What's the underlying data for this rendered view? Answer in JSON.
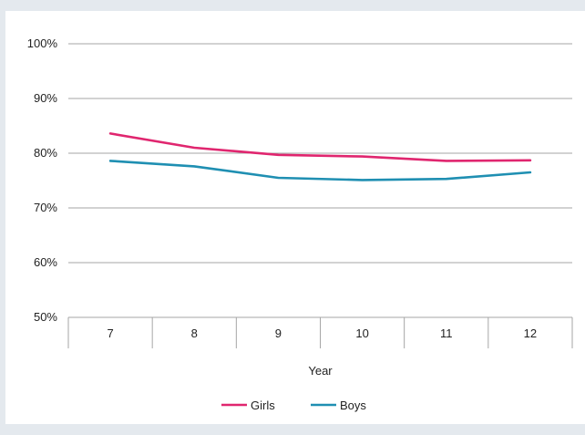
{
  "chart_data": {
    "type": "line",
    "title": "",
    "xlabel": "Year",
    "ylabel": "",
    "categories": [
      "7",
      "8",
      "9",
      "10",
      "11",
      "12"
    ],
    "y_ticks": [
      "50%",
      "60%",
      "70%",
      "80%",
      "90%",
      "100%"
    ],
    "ylim": [
      50,
      100
    ],
    "grid": true,
    "legend_position": "bottom",
    "series": [
      {
        "name": "Girls",
        "color": "#e0266f",
        "values": [
          83.6,
          81.0,
          79.7,
          79.4,
          78.6,
          78.7
        ]
      },
      {
        "name": "Boys",
        "color": "#1f8fb2",
        "values": [
          78.6,
          77.6,
          75.5,
          75.1,
          75.3,
          76.5
        ]
      }
    ]
  }
}
